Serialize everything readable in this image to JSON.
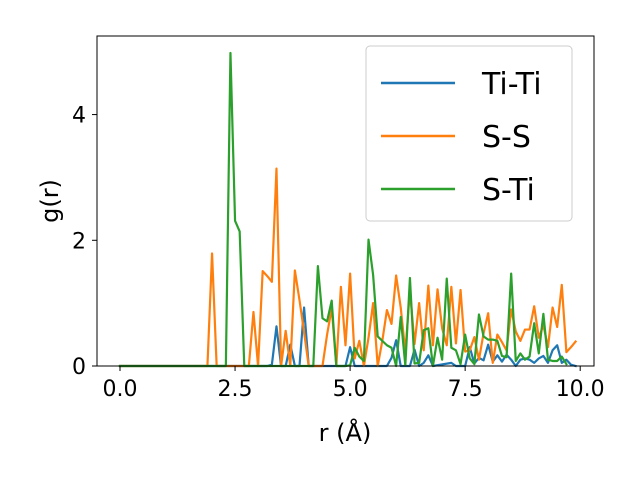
{
  "chart_data": {
    "type": "line",
    "xlabel": "r (Å)",
    "ylabel": "g(r)",
    "xlim": [
      -0.5,
      10.3
    ],
    "ylim": [
      0,
      5.25
    ],
    "xticks": [
      0.0,
      2.5,
      5.0,
      7.5,
      10.0
    ],
    "xtick_labels": [
      "0.0",
      "2.5",
      "5.0",
      "7.5",
      "10.0"
    ],
    "yticks": [
      0,
      2,
      4
    ],
    "ytick_labels": [
      "0",
      "2",
      "4"
    ],
    "grid": false,
    "legend_position": "top-right",
    "series": [
      {
        "name": "Ti-Ti",
        "color": "#1f77b4",
        "points": [
          [
            0,
            0
          ],
          [
            3.2,
            0
          ],
          [
            3.3,
            0.02
          ],
          [
            3.4,
            0.63
          ],
          [
            3.5,
            0
          ],
          [
            3.6,
            0
          ],
          [
            3.7,
            0.34
          ],
          [
            3.8,
            0
          ],
          [
            3.9,
            0
          ],
          [
            4.0,
            0.93
          ],
          [
            4.1,
            0
          ],
          [
            4.9,
            0
          ],
          [
            5.0,
            0.3
          ],
          [
            5.1,
            0
          ],
          [
            5.8,
            0
          ],
          [
            5.9,
            0.13
          ],
          [
            6.0,
            0.41
          ],
          [
            6.1,
            0
          ],
          [
            6.3,
            0
          ],
          [
            6.4,
            0.26
          ],
          [
            6.5,
            0
          ],
          [
            6.6,
            0.05
          ],
          [
            6.7,
            0.17
          ],
          [
            6.8,
            0
          ],
          [
            7.2,
            0.05
          ],
          [
            7.3,
            0
          ],
          [
            7.5,
            0
          ],
          [
            7.6,
            0.3
          ],
          [
            7.7,
            0.04
          ],
          [
            7.8,
            0.13
          ],
          [
            7.9,
            0.09
          ],
          [
            8.0,
            0.34
          ],
          [
            8.1,
            0.07
          ],
          [
            8.2,
            0.17
          ],
          [
            8.3,
            0.07
          ],
          [
            8.4,
            0.18
          ],
          [
            8.5,
            0.1
          ],
          [
            8.6,
            0
          ],
          [
            8.7,
            0.1
          ],
          [
            8.8,
            0.12
          ],
          [
            8.9,
            0.1
          ],
          [
            9.0,
            0.05
          ],
          [
            9.1,
            0.12
          ],
          [
            9.2,
            0.16
          ],
          [
            9.3,
            0.05
          ],
          [
            9.4,
            0.25
          ],
          [
            9.5,
            0.33
          ],
          [
            9.6,
            0.05
          ],
          [
            9.7,
            0.1
          ],
          [
            9.8,
            0.02
          ],
          [
            9.9,
            0
          ]
        ]
      },
      {
        "name": "S-S",
        "color": "#ff7f0e",
        "points": [
          [
            0,
            0
          ],
          [
            1.9,
            0
          ],
          [
            2.0,
            1.79
          ],
          [
            2.1,
            0
          ],
          [
            2.8,
            0
          ],
          [
            2.9,
            0.86
          ],
          [
            3.0,
            0
          ],
          [
            3.1,
            1.51
          ],
          [
            3.2,
            1.43
          ],
          [
            3.3,
            1.34
          ],
          [
            3.4,
            3.14
          ],
          [
            3.5,
            0
          ],
          [
            3.6,
            0.56
          ],
          [
            3.7,
            0
          ],
          [
            3.8,
            1.52
          ],
          [
            3.9,
            1.05
          ],
          [
            4.0,
            0.54
          ],
          [
            4.1,
            0
          ],
          [
            4.4,
            0
          ],
          [
            4.5,
            0.5
          ],
          [
            4.6,
            0.92
          ],
          [
            4.7,
            0
          ],
          [
            4.8,
            1.26
          ],
          [
            4.9,
            0.33
          ],
          [
            5.0,
            1.47
          ],
          [
            5.1,
            0.12
          ],
          [
            5.2,
            0.4
          ],
          [
            5.3,
            0
          ],
          [
            5.4,
            0.45
          ],
          [
            5.5,
            1.0
          ],
          [
            5.6,
            0
          ],
          [
            5.7,
            0.4
          ],
          [
            5.8,
            0.89
          ],
          [
            5.9,
            0.67
          ],
          [
            6.0,
            1.44
          ],
          [
            6.1,
            0.93
          ],
          [
            6.2,
            0.22
          ],
          [
            6.3,
            1.21
          ],
          [
            6.4,
            0.35
          ],
          [
            6.5,
            1.0
          ],
          [
            6.6,
            0.25
          ],
          [
            6.7,
            1.28
          ],
          [
            6.8,
            0.33
          ],
          [
            6.9,
            1.22
          ],
          [
            7.0,
            0.6
          ],
          [
            7.1,
            0.33
          ],
          [
            7.2,
            1.26
          ],
          [
            7.3,
            0.36
          ],
          [
            7.4,
            1.21
          ],
          [
            7.5,
            0.23
          ],
          [
            7.6,
            0.25
          ],
          [
            7.7,
            0.46
          ],
          [
            7.8,
            0.1
          ],
          [
            7.9,
            0.52
          ],
          [
            8.0,
            0.84
          ],
          [
            8.1,
            0.05
          ],
          [
            8.2,
            0.5
          ],
          [
            8.3,
            0.38
          ],
          [
            8.4,
            0.25
          ],
          [
            8.5,
            0.9
          ],
          [
            8.6,
            0.55
          ],
          [
            8.7,
            0.4
          ],
          [
            8.8,
            0.58
          ],
          [
            8.9,
            0.58
          ],
          [
            9.0,
            0.95
          ],
          [
            9.1,
            0.45
          ],
          [
            9.2,
            0.65
          ],
          [
            9.3,
            0.3
          ],
          [
            9.4,
            0.93
          ],
          [
            9.5,
            0.62
          ],
          [
            9.6,
            1.29
          ],
          [
            9.7,
            0.22
          ],
          [
            9.8,
            0.3
          ],
          [
            9.9,
            0.39
          ]
        ]
      },
      {
        "name": "S-Ti",
        "color": "#2ca02c",
        "points": [
          [
            0,
            0
          ],
          [
            2.3,
            0
          ],
          [
            2.4,
            4.98
          ],
          [
            2.5,
            2.31
          ],
          [
            2.6,
            2.14
          ],
          [
            2.7,
            0
          ],
          [
            4.2,
            0
          ],
          [
            4.3,
            1.59
          ],
          [
            4.4,
            0.76
          ],
          [
            4.5,
            0.71
          ],
          [
            4.6,
            1.04
          ],
          [
            4.7,
            0
          ],
          [
            4.8,
            0
          ],
          [
            4.9,
            0
          ],
          [
            5.0,
            0.01
          ],
          [
            5.1,
            0.29
          ],
          [
            5.2,
            0.15
          ],
          [
            5.3,
            0.08
          ],
          [
            5.4,
            2.01
          ],
          [
            5.5,
            1.45
          ],
          [
            5.6,
            0.47
          ],
          [
            5.7,
            0.4
          ],
          [
            5.8,
            0.33
          ],
          [
            5.9,
            0.29
          ],
          [
            6.0,
            0
          ],
          [
            6.1,
            0.78
          ],
          [
            6.2,
            0.01
          ],
          [
            6.3,
            1.4
          ],
          [
            6.4,
            0.04
          ],
          [
            6.5,
            0.05
          ],
          [
            6.6,
            0.57
          ],
          [
            6.7,
            0.6
          ],
          [
            6.8,
            0
          ],
          [
            6.9,
            0.45
          ],
          [
            7.0,
            0.1
          ],
          [
            7.1,
            1.39
          ],
          [
            7.2,
            0.29
          ],
          [
            7.3,
            0.25
          ],
          [
            7.4,
            0.03
          ],
          [
            7.5,
            0.5
          ],
          [
            7.6,
            0.12
          ],
          [
            7.7,
            0.03
          ],
          [
            7.8,
            0.82
          ],
          [
            7.9,
            0.47
          ],
          [
            8.0,
            0.42
          ],
          [
            8.1,
            0.42
          ],
          [
            8.2,
            0.4
          ],
          [
            8.3,
            0.16
          ],
          [
            8.4,
            0.14
          ],
          [
            8.5,
            1.47
          ],
          [
            8.6,
            0.08
          ],
          [
            8.7,
            0.2
          ],
          [
            8.8,
            0.1
          ],
          [
            8.9,
            0.15
          ],
          [
            9.0,
            0.68
          ],
          [
            9.1,
            0.2
          ],
          [
            9.2,
            0.83
          ],
          [
            9.3,
            0.1
          ],
          [
            9.4,
            0.08
          ],
          [
            9.5,
            0.08
          ],
          [
            9.6,
            0.15
          ],
          [
            9.7,
            0.03
          ]
        ]
      }
    ]
  }
}
